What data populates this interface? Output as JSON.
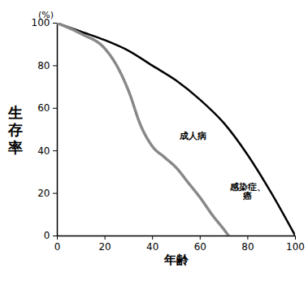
{
  "chart_data": {
    "type": "line",
    "xlabel": "年齢",
    "ylabel": "生存率",
    "ylabel_unit": "(%)",
    "xlim": [
      0,
      100
    ],
    "ylim": [
      0,
      100
    ],
    "xticks": [
      0,
      20,
      40,
      60,
      80,
      100
    ],
    "yticks": [
      0,
      20,
      40,
      60,
      80,
      100
    ],
    "grid": false,
    "series": [
      {
        "color": "#000000",
        "line_style": "solid",
        "x": [
          0,
          10,
          20,
          30,
          40,
          50,
          60,
          70,
          80,
          90,
          100
        ],
        "values": [
          100,
          96,
          92,
          87,
          80,
          73,
          64,
          53,
          38,
          20,
          0
        ]
      },
      {
        "color": "#888888",
        "line_style": "dotted",
        "x": [
          0,
          10,
          20,
          25,
          30,
          35,
          40,
          45,
          50,
          55,
          60,
          65,
          70,
          72
        ],
        "values": [
          100,
          95,
          88,
          80,
          68,
          52,
          42,
          37,
          32,
          25,
          18,
          10,
          3,
          0
        ]
      }
    ],
    "annotations": [
      {
        "text": "成人病",
        "x": 57,
        "y": 47
      },
      {
        "text": "感染症、癌",
        "x": 80,
        "y": 21
      }
    ]
  }
}
